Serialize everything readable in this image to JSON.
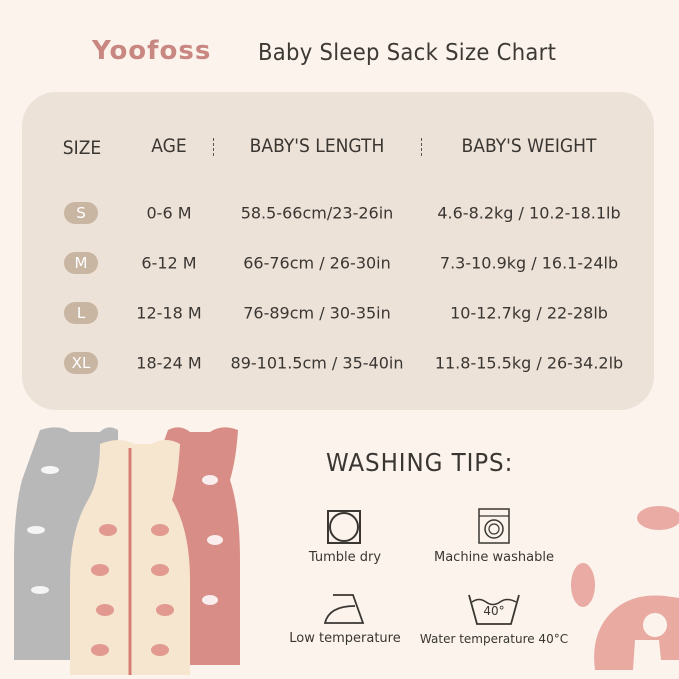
{
  "brand": {
    "logo": "Yoofoss"
  },
  "header": {
    "title": "Baby Sleep Sack Size Chart"
  },
  "table": {
    "columns": [
      "SIZE",
      "AGE",
      "BABY'S LENGTH",
      "BABY'S WEIGHT"
    ],
    "rows": [
      {
        "size": "S",
        "age": "0-6 M",
        "length": "58.5-66cm/23-26in",
        "weight": "4.6-8.2kg / 10.2-18.1lb"
      },
      {
        "size": "M",
        "age": "6-12 M",
        "length": "66-76cm / 26-30in",
        "weight": "7.3-10.9kg / 16.1-24lb"
      },
      {
        "size": "L",
        "age": "12-18 M",
        "length": "76-89cm / 30-35in",
        "weight": "10-12.7kg / 22-28lb"
      },
      {
        "size": "XL",
        "age": "18-24 M",
        "length": "89-101.5cm / 35-40in",
        "weight": "11.8-15.5kg / 26-34.2lb"
      }
    ]
  },
  "washing": {
    "title": "WASHING TIPS:",
    "tips": [
      {
        "icon": "tumble-dry-icon",
        "label": "Tumble dry"
      },
      {
        "icon": "washing-machine-icon",
        "label": "Machine washable"
      },
      {
        "icon": "iron-icon",
        "label": "Low temperature"
      },
      {
        "icon": "wash-tub-40-icon",
        "label": "Water temperature 40°C",
        "temp": "40°"
      }
    ]
  },
  "colors": {
    "background": "#fbf3ec",
    "panel": "#ede2d8",
    "badge": "#c8b5a2",
    "brand": "#c98782",
    "accent_pink": "#e4a49c"
  }
}
